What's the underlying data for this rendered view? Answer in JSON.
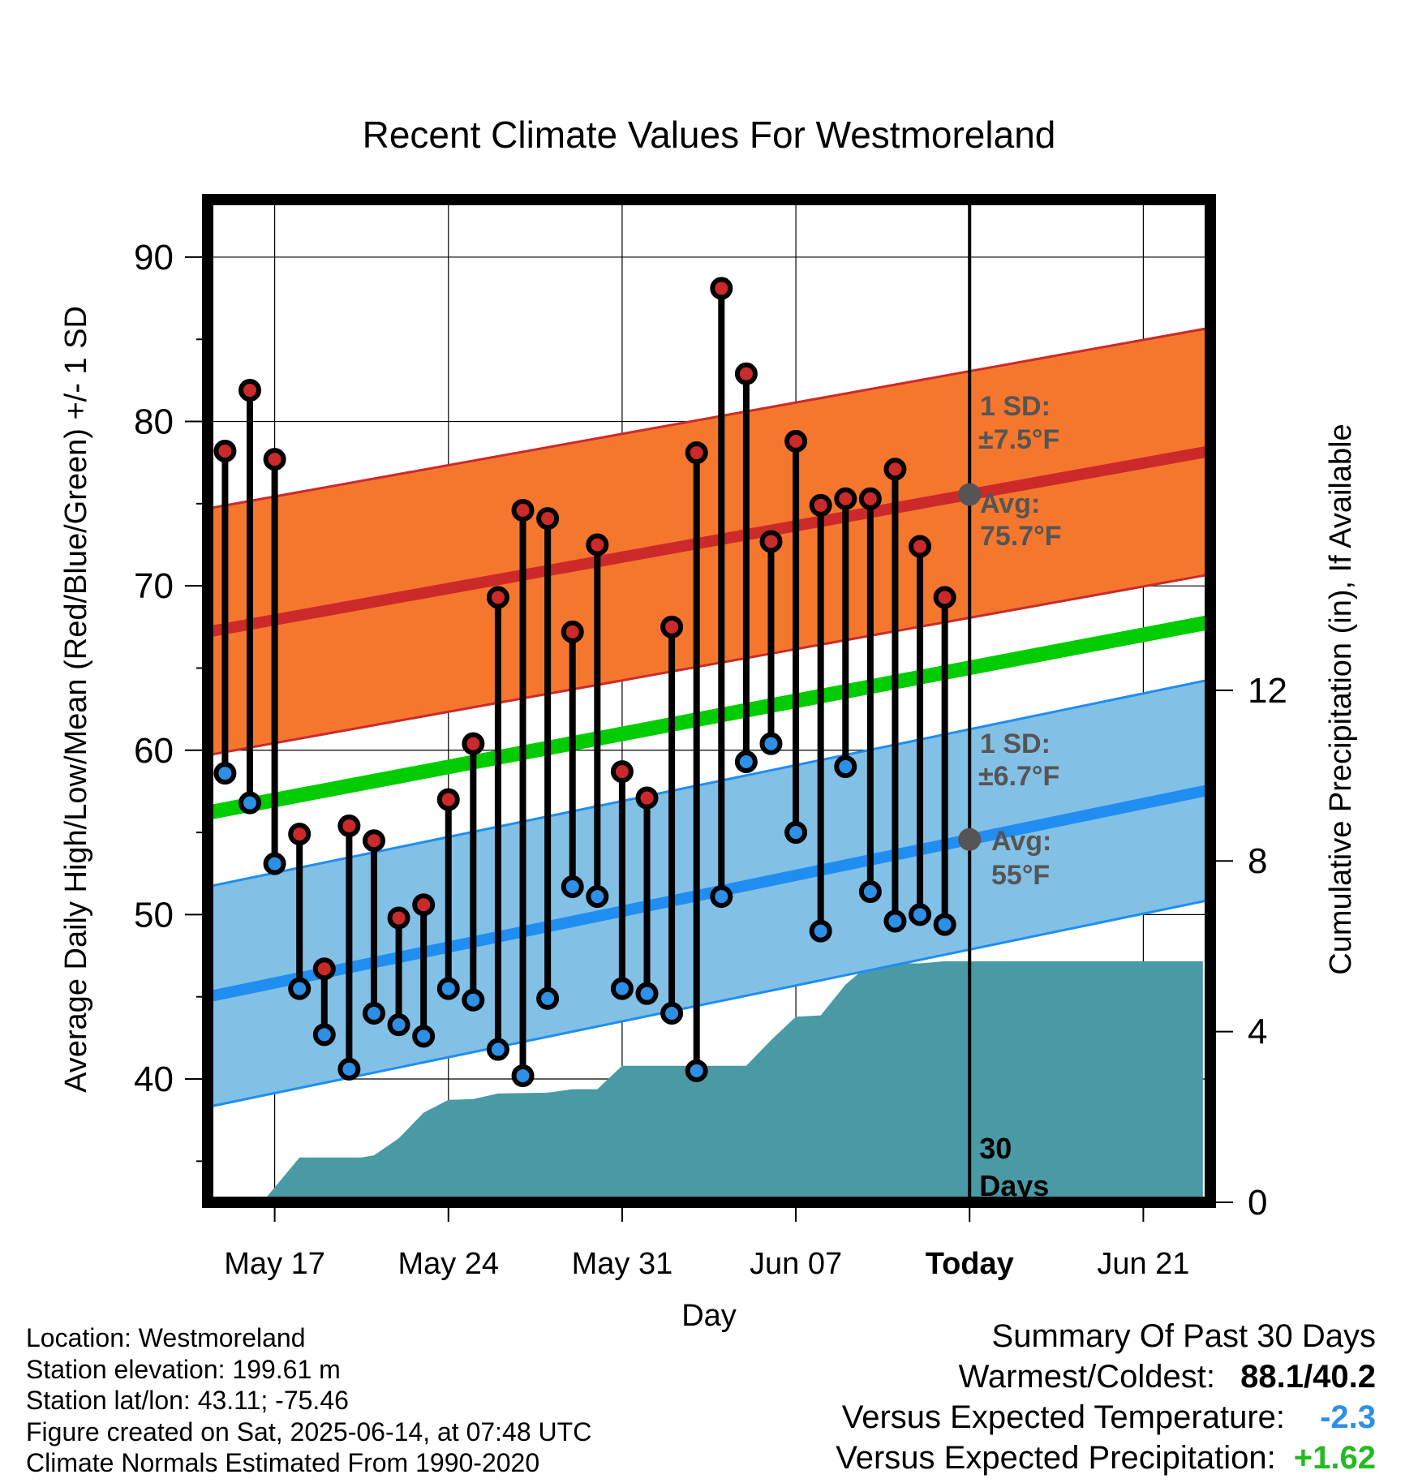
{
  "chart_data": {
    "type": "line",
    "title": "Recent Climate Values For Westmoreland",
    "xlabel": "Day",
    "ylabel": "Average Daily High/Low/Mean (Red/Blue/Green) +/- 1 SD",
    "y2label": "Cumulative Precipitation (in), If Available",
    "x_tick_labels": [
      "May 17",
      "May 24",
      "May 31",
      "Jun 07",
      "Today",
      "Jun 21"
    ],
    "x_tick_days": [
      2,
      9,
      16,
      23,
      30,
      37
    ],
    "xlim_days": [
      -0.7,
      39.7
    ],
    "ylim": [
      32.5,
      93.5
    ],
    "y_ticks": [
      40,
      50,
      60,
      70,
      80,
      90
    ],
    "y2lim": [
      0,
      23.5
    ],
    "y2_ticks": [
      0,
      4,
      8,
      12
    ],
    "grid": true,
    "today_day": 30,
    "today_marker_label": [
      "30",
      "Days"
    ],
    "series": [
      {
        "name": "High",
        "color": "#cc2a2a",
        "days": [
          0,
          1,
          2,
          3,
          4,
          5,
          6,
          7,
          8,
          9,
          10,
          11,
          12,
          13,
          14,
          15,
          16,
          17,
          18,
          19,
          20,
          21,
          22,
          23,
          24,
          25,
          26,
          27,
          28,
          29
        ],
        "values": [
          78.2,
          81.9,
          77.7,
          54.9,
          46.7,
          55.4,
          54.5,
          49.8,
          50.6,
          57.0,
          60.4,
          69.3,
          74.6,
          74.1,
          67.2,
          72.5,
          58.7,
          57.1,
          67.5,
          78.1,
          88.1,
          82.9,
          72.7,
          78.8,
          74.9,
          75.3,
          75.3,
          77.1,
          72.4,
          69.3
        ]
      },
      {
        "name": "Low",
        "color": "#2e8fe6",
        "days": [
          0,
          1,
          2,
          3,
          4,
          5,
          6,
          7,
          8,
          9,
          10,
          11,
          12,
          13,
          14,
          15,
          16,
          17,
          18,
          19,
          20,
          21,
          22,
          23,
          24,
          25,
          26,
          27,
          28,
          29
        ],
        "values": [
          58.6,
          56.8,
          53.1,
          45.5,
          42.7,
          40.6,
          44.0,
          43.3,
          42.6,
          45.5,
          44.8,
          41.8,
          40.2,
          44.9,
          51.7,
          51.1,
          45.5,
          45.2,
          44.0,
          40.5,
          51.1,
          59.3,
          60.4,
          55.0,
          49.0,
          59.0,
          51.4,
          49.6,
          50.0,
          49.4
        ]
      },
      {
        "name": "Cumulative Precipitation",
        "axis": "right",
        "color": "#4a9aa5",
        "days": [
          1.5,
          3,
          4,
          5,
          5.5,
          6,
          7,
          8,
          9,
          10,
          11,
          12,
          13,
          14,
          15,
          16,
          17,
          18,
          19,
          20,
          21,
          22,
          23,
          24,
          25,
          26,
          27,
          28,
          29,
          30,
          39.4
        ],
        "values": [
          0,
          1.05,
          1.05,
          1.05,
          1.05,
          1.1,
          1.5,
          2.1,
          2.4,
          2.42,
          2.55,
          2.56,
          2.57,
          2.65,
          2.65,
          3.2,
          3.2,
          3.2,
          3.2,
          3.2,
          3.2,
          3.8,
          4.35,
          4.38,
          5.1,
          5.6,
          5.6,
          5.6,
          5.65,
          5.65,
          5.65
        ]
      }
    ],
    "normals": {
      "high_avg": {
        "color": "#cc2a2a",
        "start": 67.2,
        "end": 78.2
      },
      "high_sd": {
        "color": "#f5772e",
        "edge_color": "#cc2a2a",
        "value": 7.5
      },
      "low_avg": {
        "color": "#1f8ef0",
        "start": 45.0,
        "end": 57.6
      },
      "low_sd": {
        "color": "#83c0e6",
        "edge_color": "#1f8ef0",
        "value": 6.7
      },
      "mean_avg": {
        "color": "#00cc00",
        "start": 56.2,
        "end": 67.8
      }
    },
    "annotations": {
      "high_sd": "1 SD:",
      "high_sd_value": "±7.5°F",
      "high_avg": "Avg:",
      "high_avg_value": "75.7°F",
      "low_sd": "1 SD:",
      "low_sd_value": "±6.7°F",
      "low_avg": "Avg:",
      "low_avg_value": "55°F"
    }
  },
  "footer": {
    "location": "Location: Westmoreland",
    "elevation": "Station elevation: 199.61 m",
    "latlon": "Station lat/lon: 43.11; -75.46",
    "created": "Figure created on Sat, 2025-06-14, at 07:48 UTC",
    "normals": "Climate Normals Estimated From 1990-2020"
  },
  "summary": {
    "heading": "Summary Of Past 30 Days",
    "warm_label": "Warmest/Coldest:",
    "warm_value": "88.1/40.2",
    "temp_label": "Versus Expected Temperature:",
    "temp_value": "-2.3",
    "temp_color": "#2e8fe6",
    "precip_label": "Versus Expected Precipitation:",
    "precip_value": "+1.62",
    "precip_color": "#22bb22"
  }
}
